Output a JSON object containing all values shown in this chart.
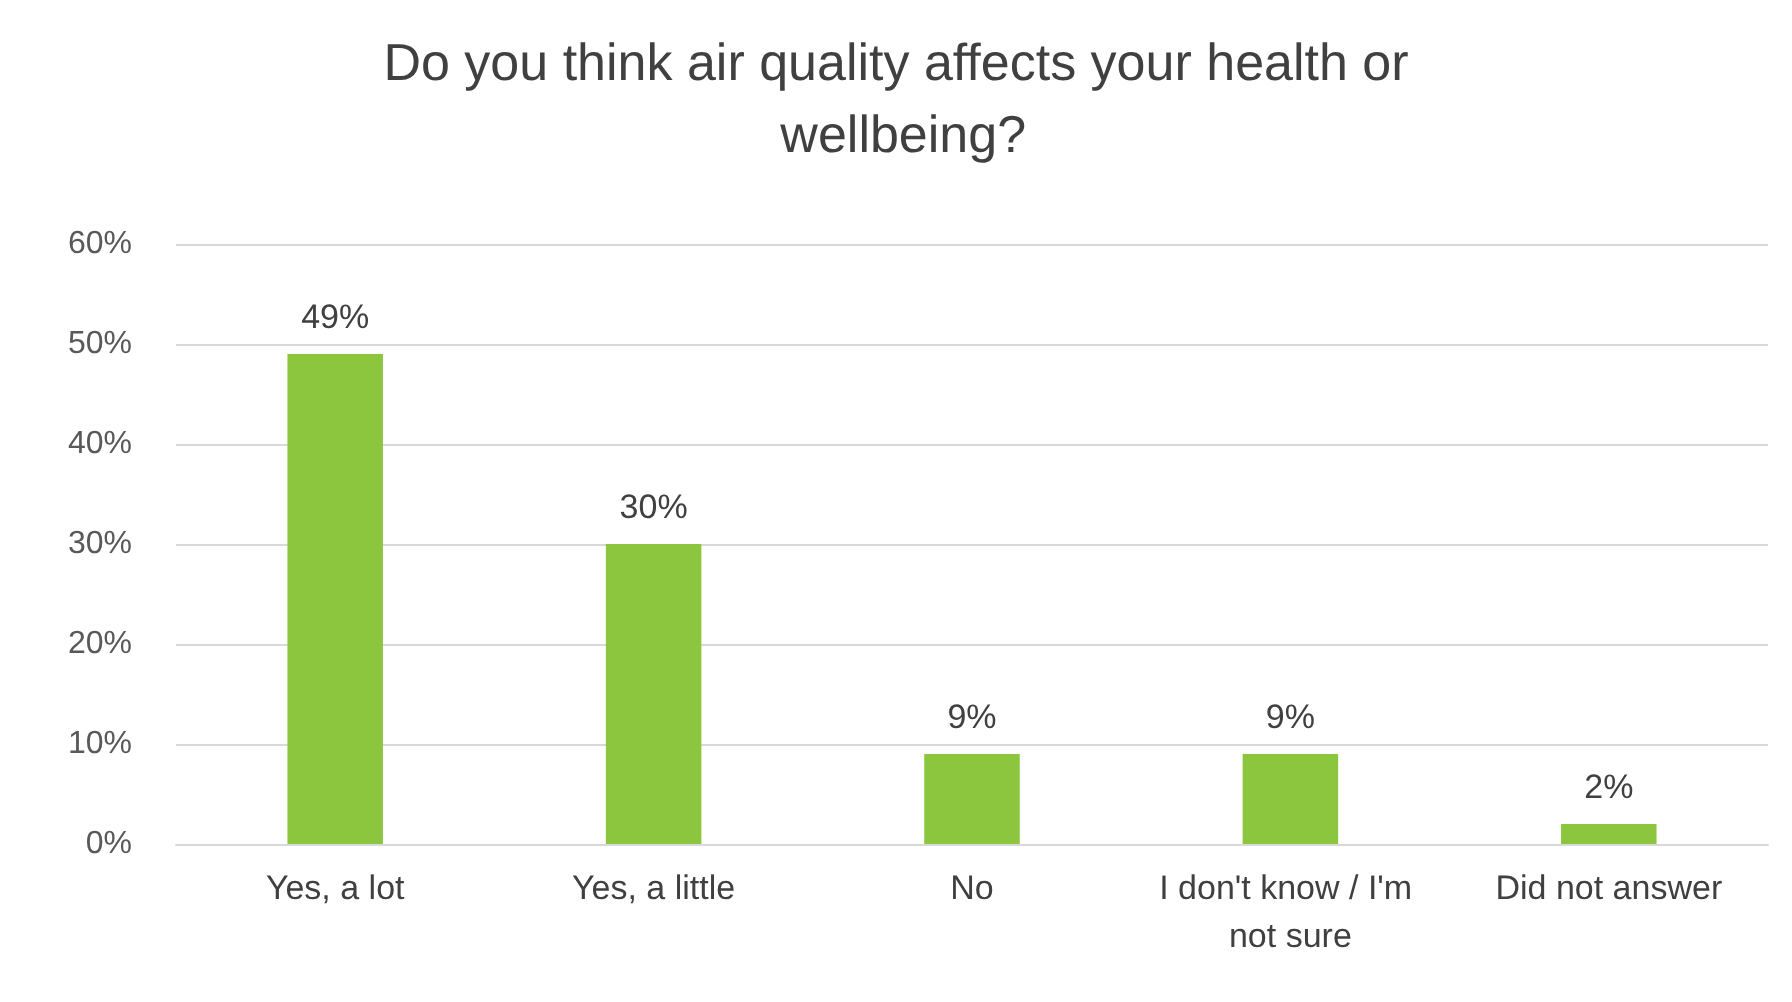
{
  "chart_data": {
    "type": "bar",
    "title": "Do you think air quality affects your health or wellbeing?",
    "categories": [
      "Yes, a lot",
      "Yes, a little",
      "No",
      "I don't know / I'm not sure",
      "Did not answer"
    ],
    "values": [
      49,
      30,
      9,
      9,
      2
    ],
    "value_labels": [
      "49%",
      "30%",
      "9%",
      "9%",
      "2%"
    ],
    "color": "#8cc63f",
    "ylim": [
      0,
      60
    ],
    "yticks": [
      {
        "value": 0,
        "label": "0%"
      },
      {
        "value": 10,
        "label": "10%"
      },
      {
        "value": 20,
        "label": "20%"
      },
      {
        "value": 30,
        "label": "30%"
      },
      {
        "value": 40,
        "label": "40%"
      },
      {
        "value": 50,
        "label": "50%"
      },
      {
        "value": 60,
        "label": "60%"
      }
    ],
    "grid": "y"
  }
}
